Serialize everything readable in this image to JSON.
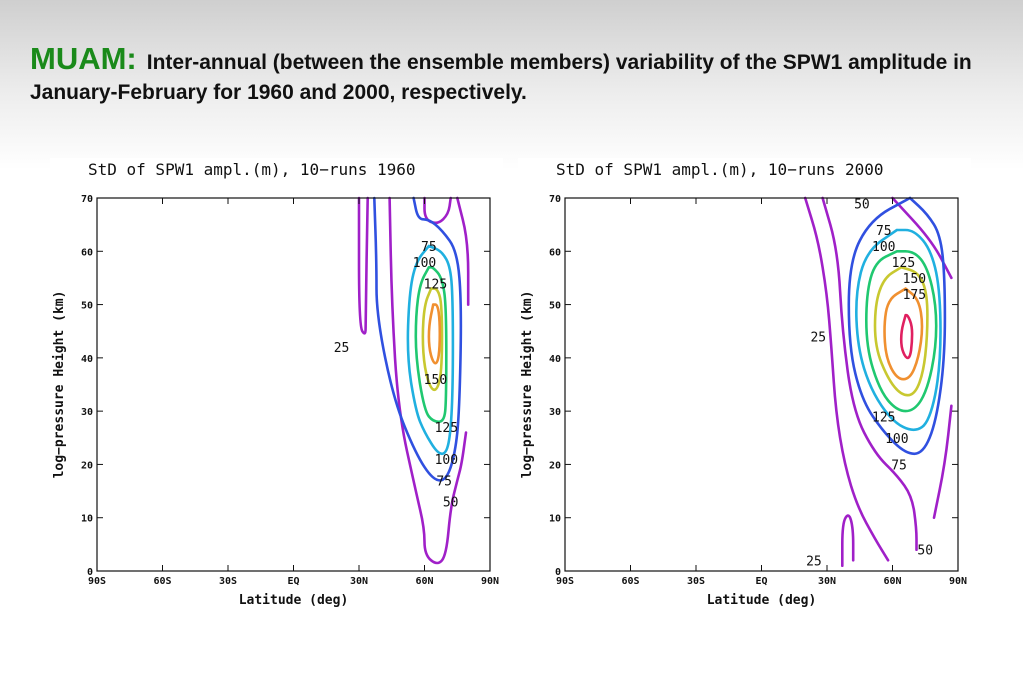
{
  "slide": {
    "title_key": "MUAM:",
    "title_text": "Inter-annual (between the ensemble members) variability of the SPW1 amplitude in January-February for 1960 and 2000, respectively."
  },
  "colors": {
    "25": "#a020c8",
    "50": "#a020c8",
    "75": "#3050e0",
    "100": "#20b0e0",
    "125": "#20c870",
    "150": "#c8c830",
    "175": "#f09030",
    "inner": "#e02060"
  },
  "chart_data": [
    {
      "type": "contour",
      "title": "StD of SPW1 ampl.(m), 10−runs 1960",
      "xlabel": "Latitude (deg)",
      "ylabel": "log−pressure Height (km)",
      "xlim": [
        -90,
        90
      ],
      "ylim": [
        0,
        70
      ],
      "x_ticks": [
        -90,
        -60,
        -30,
        0,
        30,
        60,
        90
      ],
      "x_tick_labels": [
        "90S",
        "60S",
        "30S",
        "EQ",
        "30N",
        "60N",
        "90N"
      ],
      "y_ticks": [
        0,
        10,
        20,
        30,
        40,
        50,
        60,
        70
      ],
      "y_tick_labels": [
        "0",
        "10",
        "20",
        "30",
        "40",
        "50",
        "60",
        "70"
      ],
      "contours": [
        {
          "level": "25",
          "lines": [
            [
              [
                30,
                70
              ],
              [
                30,
                46
              ],
              [
                33,
                44
              ],
              [
                33,
                47
              ],
              [
                34,
                70
              ]
            ]
          ]
        },
        {
          "level": "50",
          "lines": [
            [
              [
                44,
                70
              ],
              [
                45,
                50
              ],
              [
                48,
                30
              ],
              [
                56,
                15
              ],
              [
                60,
                8
              ],
              [
                60,
                3
              ],
              [
                66,
                1
              ],
              [
                70,
                3
              ],
              [
                72,
                12
              ],
              [
                75,
                17
              ],
              [
                77,
                20
              ],
              [
                79,
                26
              ]
            ],
            [
              [
                80,
                50
              ],
              [
                80,
                62
              ],
              [
                75,
                70
              ]
            ],
            [
              [
                60,
                70
              ],
              [
                60,
                66
              ],
              [
                66,
                65
              ],
              [
                71,
                67
              ],
              [
                72,
                70
              ]
            ]
          ]
        },
        {
          "level": "75",
          "lines": [
            [
              [
                37,
                70
              ],
              [
                38,
                58
              ],
              [
                38,
                48
              ],
              [
                46,
                32
              ],
              [
                56,
                22
              ],
              [
                64,
                17
              ],
              [
                70,
                17
              ],
              [
                74,
                22
              ],
              [
                76,
                30
              ],
              [
                77,
                50
              ],
              [
                75,
                60
              ],
              [
                68,
                64
              ],
              [
                62,
                66
              ],
              [
                57,
                66
              ],
              [
                55,
                70
              ]
            ]
          ]
        },
        {
          "level": "100",
          "lines": [
            [
              [
                62,
                61
              ],
              [
                56,
                58
              ],
              [
                53,
                52
              ],
              [
                52,
                40
              ],
              [
                56,
                30
              ],
              [
                60,
                26
              ],
              [
                66,
                22
              ],
              [
                70,
                22
              ],
              [
                72,
                26
              ],
              [
                73,
                35
              ],
              [
                73,
                50
              ],
              [
                72,
                57
              ],
              [
                68,
                60
              ],
              [
                62,
                61
              ]
            ]
          ]
        },
        {
          "level": "125",
          "lines": [
            [
              [
                62,
                57
              ],
              [
                58,
                54
              ],
              [
                56,
                48
              ],
              [
                56,
                40
              ],
              [
                60,
                30
              ],
              [
                64,
                28
              ],
              [
                69,
                28
              ],
              [
                70,
                32
              ],
              [
                70,
                50
              ],
              [
                68,
                55
              ],
              [
                64,
                57
              ],
              [
                62,
                57
              ]
            ]
          ]
        },
        {
          "level": "150",
          "lines": [
            [
              [
                63,
                53
              ],
              [
                60,
                50
              ],
              [
                59,
                44
              ],
              [
                60,
                38
              ],
              [
                63,
                34
              ],
              [
                66,
                34
              ],
              [
                68,
                38
              ],
              [
                68,
                50
              ],
              [
                66,
                53
              ],
              [
                63,
                53
              ]
            ]
          ]
        },
        {
          "level": "175",
          "lines": [
            [
              [
                64,
                50
              ],
              [
                62,
                46
              ],
              [
                62,
                42
              ],
              [
                64,
                39
              ],
              [
                66,
                39
              ],
              [
                67,
                42
              ],
              [
                67,
                47
              ],
              [
                66,
                50
              ],
              [
                64,
                50
              ]
            ]
          ]
        }
      ],
      "contour_labels": [
        {
          "text": "25",
          "x": 22,
          "y": 42
        },
        {
          "text": "75",
          "x": 62,
          "y": 61
        },
        {
          "text": "100",
          "x": 60,
          "y": 58
        },
        {
          "text": "125",
          "x": 65,
          "y": 54
        },
        {
          "text": "150",
          "x": 65,
          "y": 36
        },
        {
          "text": "125",
          "x": 70,
          "y": 27
        },
        {
          "text": "100",
          "x": 70,
          "y": 21
        },
        {
          "text": "75",
          "x": 69,
          "y": 17
        },
        {
          "text": "50",
          "x": 72,
          "y": 13
        }
      ]
    },
    {
      "type": "contour",
      "title": "StD of SPW1 ampl.(m), 10−runs 2000",
      "xlabel": "Latitude (deg)",
      "ylabel": "log−pressure Height (km)",
      "xlim": [
        -90,
        90
      ],
      "ylim": [
        0,
        70
      ],
      "x_ticks": [
        -90,
        -60,
        -30,
        0,
        30,
        60,
        90
      ],
      "x_tick_labels": [
        "90S",
        "60S",
        "30S",
        "EQ",
        "30N",
        "60N",
        "90N"
      ],
      "y_ticks": [
        0,
        10,
        20,
        30,
        40,
        50,
        60,
        70
      ],
      "y_tick_labels": [
        "0",
        "10",
        "20",
        "30",
        "40",
        "50",
        "60",
        "70"
      ],
      "contours": [
        {
          "level": "25",
          "lines": [
            [
              [
                20,
                70
              ],
              [
                26,
                62
              ],
              [
                30,
                52
              ],
              [
                32,
                42
              ],
              [
                34,
                30
              ],
              [
                38,
                20
              ],
              [
                44,
                12
              ],
              [
                52,
                6
              ],
              [
                58,
                2
              ]
            ],
            [
              [
                37,
                1
              ],
              [
                37,
                9
              ],
              [
                40,
                11
              ],
              [
                42,
                8
              ],
              [
                42,
                2
              ]
            ]
          ]
        },
        {
          "level": "50",
          "lines": [
            [
              [
                28,
                70
              ],
              [
                35,
                60
              ],
              [
                37,
                45
              ],
              [
                42,
                30
              ],
              [
                52,
                22
              ],
              [
                62,
                18
              ],
              [
                69,
                14
              ],
              [
                71,
                8
              ],
              [
                71,
                4
              ]
            ],
            [
              [
                60,
                70
              ],
              [
                78,
                62
              ],
              [
                87,
                55
              ]
            ],
            [
              [
                87,
                31
              ],
              [
                84,
                20
              ],
              [
                79,
                10
              ]
            ]
          ]
        },
        {
          "level": "75",
          "lines": [
            [
              [
                68,
                70
              ],
              [
                50,
                66
              ],
              [
                40,
                58
              ],
              [
                40,
                42
              ],
              [
                46,
                32
              ],
              [
                56,
                26
              ],
              [
                66,
                22
              ],
              [
                74,
                22
              ],
              [
                80,
                28
              ],
              [
                84,
                40
              ],
              [
                84,
                55
              ],
              [
                82,
                63
              ],
              [
                76,
                67
              ],
              [
                68,
                70
              ]
            ]
          ]
        },
        {
          "level": "100",
          "lines": [
            [
              [
                62,
                64
              ],
              [
                48,
                60
              ],
              [
                43,
                52
              ],
              [
                44,
                42
              ],
              [
                50,
                34
              ],
              [
                60,
                28
              ],
              [
                70,
                26
              ],
              [
                77,
                28
              ],
              [
                82,
                38
              ],
              [
                82,
                52
              ],
              [
                78,
                60
              ],
              [
                70,
                64
              ],
              [
                62,
                64
              ]
            ]
          ]
        },
        {
          "level": "125",
          "lines": [
            [
              [
                62,
                60
              ],
              [
                52,
                58
              ],
              [
                48,
                52
              ],
              [
                48,
                42
              ],
              [
                54,
                34
              ],
              [
                62,
                30
              ],
              [
                70,
                30
              ],
              [
                76,
                34
              ],
              [
                80,
                42
              ],
              [
                80,
                50
              ],
              [
                76,
                57
              ],
              [
                70,
                60
              ],
              [
                62,
                60
              ]
            ]
          ]
        },
        {
          "level": "150",
          "lines": [
            [
              [
                64,
                57
              ],
              [
                56,
                55
              ],
              [
                52,
                50
              ],
              [
                52,
                42
              ],
              [
                58,
                36
              ],
              [
                64,
                33
              ],
              [
                70,
                33
              ],
              [
                74,
                37
              ],
              [
                76,
                44
              ],
              [
                76,
                52
              ],
              [
                72,
                56
              ],
              [
                64,
                57
              ]
            ]
          ]
        },
        {
          "level": "175",
          "lines": [
            [
              [
                66,
                53
              ],
              [
                58,
                51
              ],
              [
                56,
                46
              ],
              [
                57,
                40
              ],
              [
                62,
                36
              ],
              [
                68,
                36
              ],
              [
                72,
                40
              ],
              [
                74,
                46
              ],
              [
                72,
                51
              ],
              [
                66,
                53
              ]
            ]
          ]
        },
        {
          "level": "inner",
          "lines": [
            [
              [
                66,
                48
              ],
              [
                64,
                45
              ],
              [
                64,
                42
              ],
              [
                66,
                40
              ],
              [
                68,
                40
              ],
              [
                69,
                43
              ],
              [
                69,
                46
              ],
              [
                67,
                48
              ],
              [
                66,
                48
              ]
            ]
          ]
        }
      ],
      "contour_labels": [
        {
          "text": "50",
          "x": 46,
          "y": 69
        },
        {
          "text": "75",
          "x": 56,
          "y": 64
        },
        {
          "text": "100",
          "x": 56,
          "y": 61
        },
        {
          "text": "125",
          "x": 65,
          "y": 58
        },
        {
          "text": "150",
          "x": 70,
          "y": 55
        },
        {
          "text": "175",
          "x": 70,
          "y": 52
        },
        {
          "text": "25",
          "x": 26,
          "y": 44
        },
        {
          "text": "125",
          "x": 56,
          "y": 29
        },
        {
          "text": "100",
          "x": 62,
          "y": 25
        },
        {
          "text": "75",
          "x": 63,
          "y": 20
        },
        {
          "text": "25",
          "x": 24,
          "y": 2
        },
        {
          "text": "50",
          "x": 75,
          "y": 4
        }
      ]
    }
  ]
}
